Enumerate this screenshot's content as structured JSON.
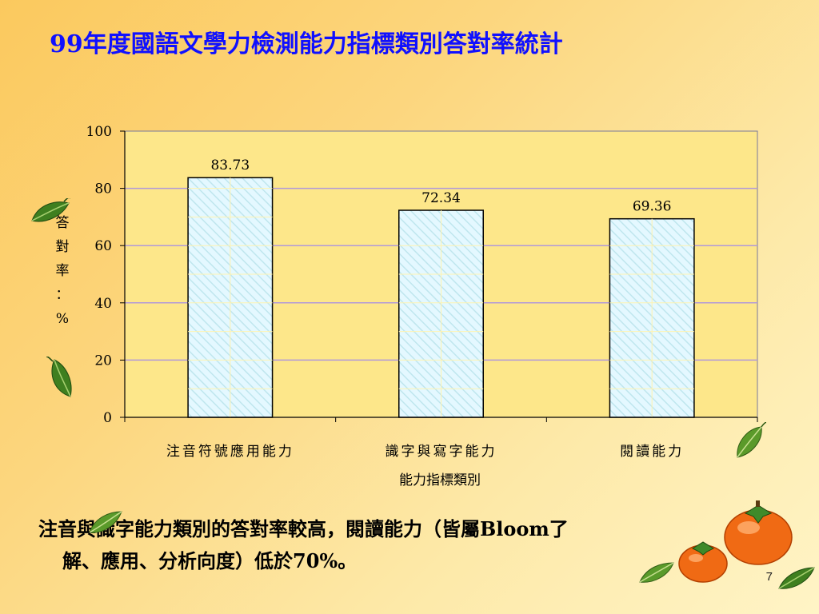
{
  "slide": {
    "title": "99年度國語文學力檢測能力指標類別答對率統計",
    "footer_line1": "注音與識字能力類別的答對率較高，閱讀能力（皆屬Bloom了",
    "footer_line2": "解、應用、分析向度）低於70%。",
    "page_number": "7"
  },
  "chart_data": {
    "type": "bar",
    "categories": [
      "注音符號應用能力",
      "識字與寫字能力",
      "閱讀能力"
    ],
    "values": [
      83.73,
      72.34,
      69.36
    ],
    "data_labels": [
      "83.73",
      "72.34",
      "69.36"
    ],
    "xlabel": "能力指標類別",
    "ylabel": [
      "答",
      "對",
      "率",
      "：",
      "%"
    ],
    "ylim": [
      0,
      100
    ],
    "yticks": [
      0,
      20,
      40,
      60,
      80,
      100
    ],
    "grid": true,
    "legend": "none",
    "colors": {
      "bar_fill": "#e4f8ff",
      "bar_hatch": "#bfe6ee",
      "bar_stroke": "#000000",
      "plot_bg": "#fde78a",
      "gridline": "#b199d9",
      "plot_border": "#7a7a99"
    }
  },
  "decorations": [
    "leaf-icon",
    "persimmon-icon"
  ]
}
